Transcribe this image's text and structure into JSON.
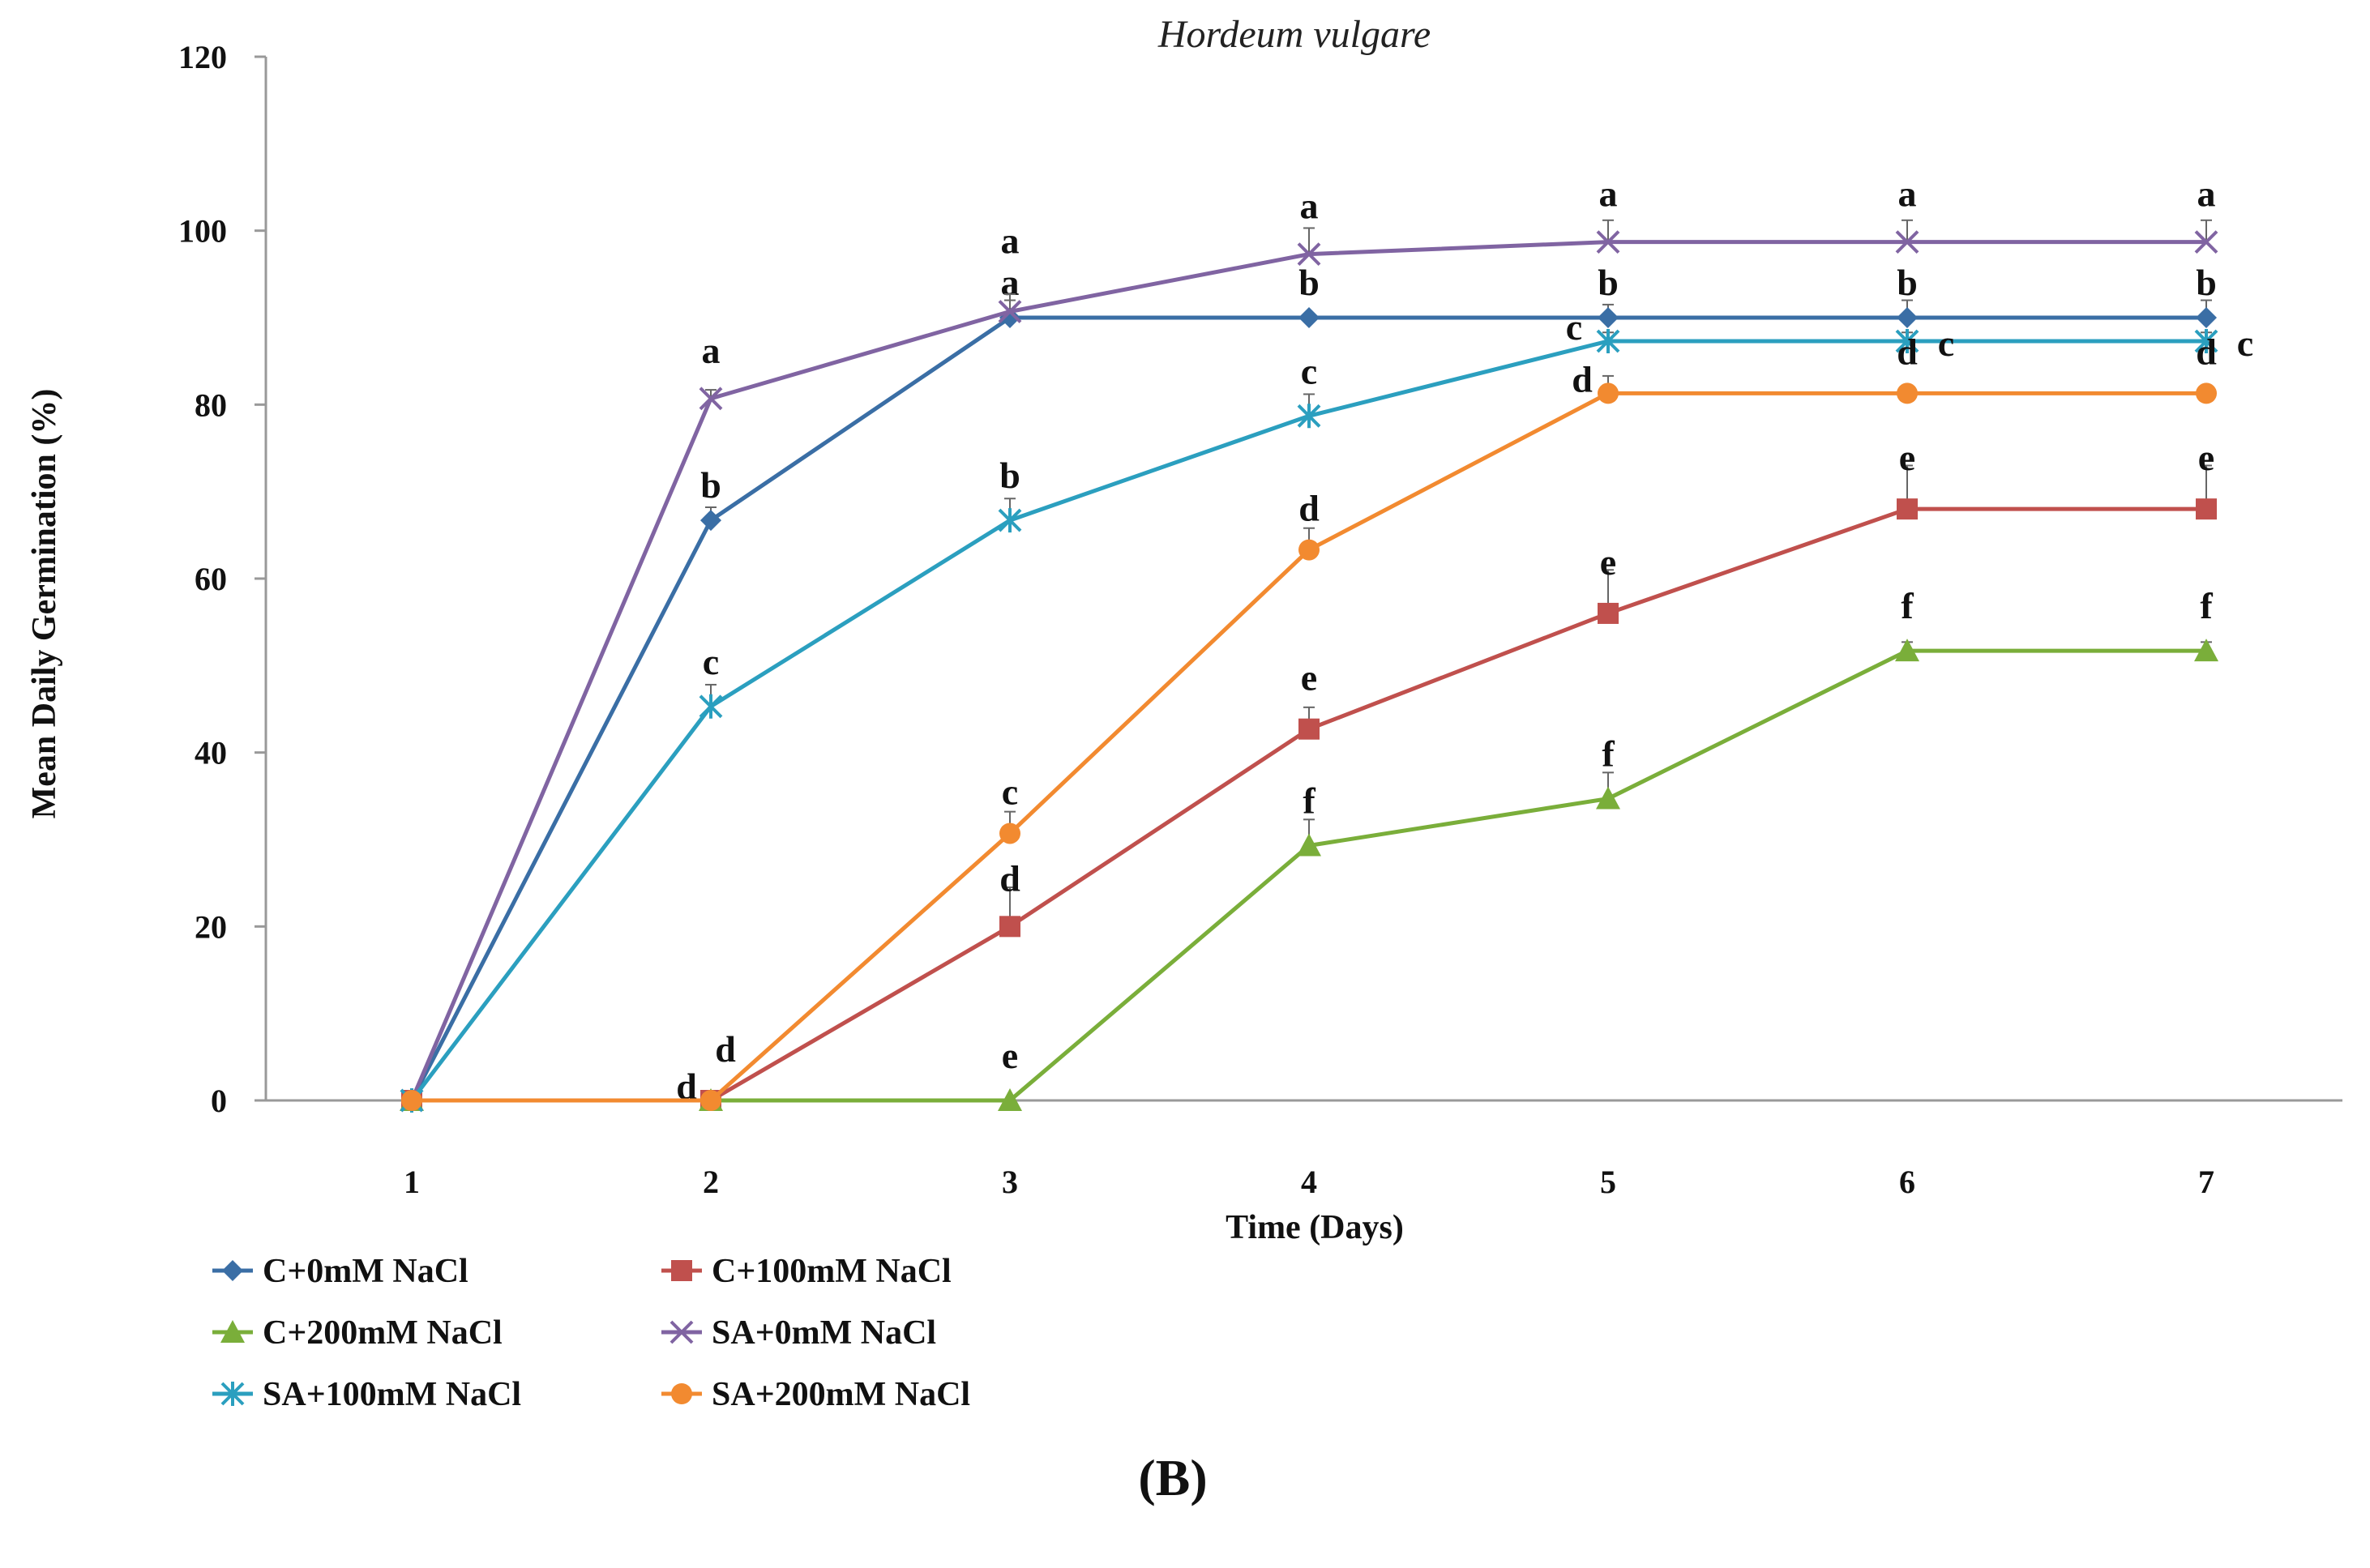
{
  "chart_data": {
    "type": "line",
    "title": "Hordeum vulgare",
    "xlabel": "Time (Days)",
    "ylabel": "Mean Daily Germination (%)",
    "panel_label": "(B)",
    "x": [
      1,
      2,
      3,
      4,
      5,
      6,
      7
    ],
    "x_ticks": [
      "1",
      "2",
      "3",
      "4",
      "5",
      "6",
      "7"
    ],
    "y_ticks": [
      "0",
      "20",
      "40",
      "60",
      "80",
      "100",
      "120"
    ],
    "ylim": [
      0,
      120
    ],
    "grid": false,
    "legend_position": "bottom-left",
    "series": [
      {
        "name": "C+0mM NaCl",
        "color": "#3A6EA5",
        "marker": "diamond",
        "values": [
          0,
          66.7,
          90,
          90,
          90,
          90,
          90
        ],
        "errors": [
          0,
          1.5,
          2,
          0,
          1.5,
          2,
          2
        ],
        "labels": [
          "",
          "b",
          "a",
          "b",
          "b",
          "b",
          "b"
        ]
      },
      {
        "name": "C+100mM NaCl",
        "color": "#C0504D",
        "marker": "square",
        "values": [
          0,
          0,
          20,
          42.7,
          56,
          68,
          68
        ],
        "errors": [
          0,
          0,
          4.5,
          2.5,
          5,
          5,
          5
        ],
        "labels": [
          "",
          "d",
          "d",
          "e",
          "e",
          "e",
          "e"
        ]
      },
      {
        "name": "C+200mM NaCl",
        "color": "#7AAE3A",
        "marker": "triangle",
        "values": [
          0,
          0,
          0,
          29.3,
          34.7,
          51.7,
          51.7
        ],
        "errors": [
          0,
          0,
          0,
          3,
          3,
          1,
          1
        ],
        "labels": [
          "",
          "",
          "e",
          "f",
          "f",
          "f",
          "f"
        ]
      },
      {
        "name": "SA+0mM NaCl",
        "color": "#8064A2",
        "marker": "x",
        "values": [
          0,
          80.7,
          90.7,
          97.3,
          98.7,
          98.7,
          98.7
        ],
        "errors": [
          0,
          1,
          2,
          3,
          2.5,
          2.5,
          2.5
        ],
        "labels": [
          "",
          "a",
          "a",
          "a",
          "a",
          "a",
          "a"
        ]
      },
      {
        "name": "SA+100mM NaCl",
        "color": "#2B9FBF",
        "marker": "star",
        "values": [
          0,
          45.3,
          66.7,
          78.7,
          87.3,
          87.3,
          87.3
        ],
        "errors": [
          0,
          2.5,
          2.5,
          2.5,
          1,
          1,
          1
        ],
        "labels": [
          "",
          "c",
          "b",
          "c",
          "c",
          "c",
          "c"
        ]
      },
      {
        "name": "SA+200mM NaCl",
        "color": "#F28A30",
        "marker": "circle",
        "values": [
          0,
          0,
          30.7,
          63.3,
          81.3,
          81.3,
          81.3
        ],
        "errors": [
          0,
          0,
          2.5,
          2.5,
          2,
          0,
          0
        ],
        "labels": [
          "",
          "d",
          "c",
          "d",
          "d",
          "d",
          "d"
        ]
      }
    ]
  }
}
